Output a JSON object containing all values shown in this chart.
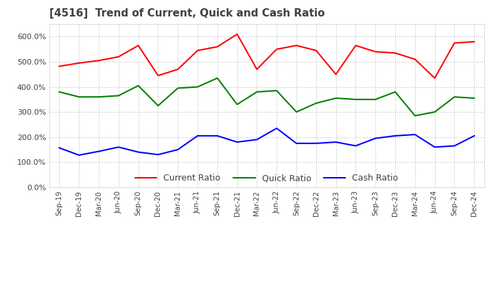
{
  "title": "[4516]  Trend of Current, Quick and Cash Ratio",
  "ylim": [
    0.0,
    6.5
  ],
  "yticks": [
    0.0,
    1.0,
    2.0,
    3.0,
    4.0,
    5.0,
    6.0
  ],
  "ytick_labels": [
    "0.0%",
    "100.0%",
    "200.0%",
    "300.0%",
    "400.0%",
    "500.0%",
    "600.0%"
  ],
  "x_labels": [
    "Sep-19",
    "Dec-19",
    "Mar-20",
    "Jun-20",
    "Sep-20",
    "Dec-20",
    "Mar-21",
    "Jun-21",
    "Sep-21",
    "Dec-21",
    "Mar-22",
    "Jun-22",
    "Sep-22",
    "Dec-22",
    "Mar-23",
    "Jun-23",
    "Sep-23",
    "Dec-23",
    "Mar-24",
    "Jun-24",
    "Sep-24",
    "Dec-24"
  ],
  "current_ratio": [
    4.82,
    4.95,
    5.05,
    5.2,
    5.65,
    4.45,
    4.7,
    5.45,
    5.6,
    6.1,
    4.7,
    5.5,
    5.65,
    5.45,
    4.5,
    5.65,
    5.4,
    5.35,
    5.1,
    4.35,
    5.75,
    5.8
  ],
  "quick_ratio": [
    3.8,
    3.6,
    3.6,
    3.65,
    4.05,
    3.25,
    3.95,
    4.0,
    4.35,
    3.3,
    3.8,
    3.85,
    3.0,
    3.35,
    3.55,
    3.5,
    3.5,
    3.8,
    2.85,
    3.0,
    3.6,
    3.55
  ],
  "cash_ratio": [
    1.57,
    1.28,
    1.43,
    1.6,
    1.4,
    1.3,
    1.5,
    2.05,
    2.05,
    1.8,
    1.9,
    2.35,
    1.75,
    1.75,
    1.8,
    1.65,
    1.95,
    2.05,
    2.1,
    1.6,
    1.65,
    2.05
  ],
  "current_color": "#FF0000",
  "quick_color": "#008000",
  "cash_color": "#0000FF",
  "grid_color": "#bbbbbb",
  "bg_color": "#ffffff",
  "title_color": "#404040",
  "legend_labels": [
    "Current Ratio",
    "Quick Ratio",
    "Cash Ratio"
  ]
}
